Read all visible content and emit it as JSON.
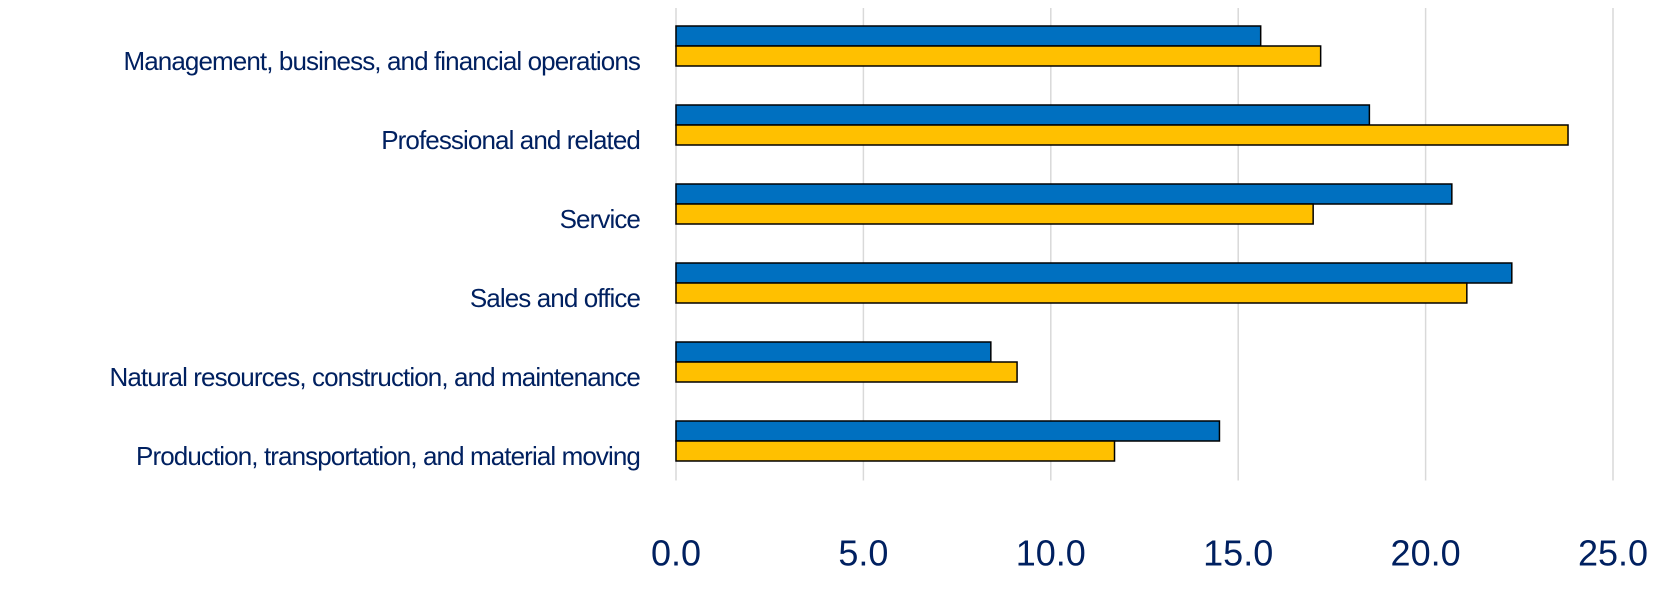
{
  "chart_data": {
    "type": "hbar",
    "categories": [
      "Management, business, and financial  operations",
      "Professional and related",
      "Service",
      "Sales and office",
      "Natural resources, construction, and maintenance",
      "Production, transportation, and material moving"
    ],
    "series": [
      {
        "color": "#0070c0",
        "values": [
          15.6,
          18.5,
          20.7,
          22.3,
          8.4,
          14.5
        ]
      },
      {
        "color": "#ffc000",
        "values": [
          17.2,
          23.8,
          17.0,
          21.1,
          9.1,
          11.7
        ]
      }
    ],
    "xlim": [
      0,
      25
    ],
    "xticks": [
      {
        "value": 0,
        "label": "0.0"
      },
      {
        "value": 5,
        "label": "5.0"
      },
      {
        "value": 10,
        "label": "10.0"
      },
      {
        "value": 15,
        "label": "15.0"
      },
      {
        "value": 20,
        "label": "20.0"
      },
      {
        "value": 25,
        "label": "25.0"
      }
    ],
    "grid": true
  }
}
